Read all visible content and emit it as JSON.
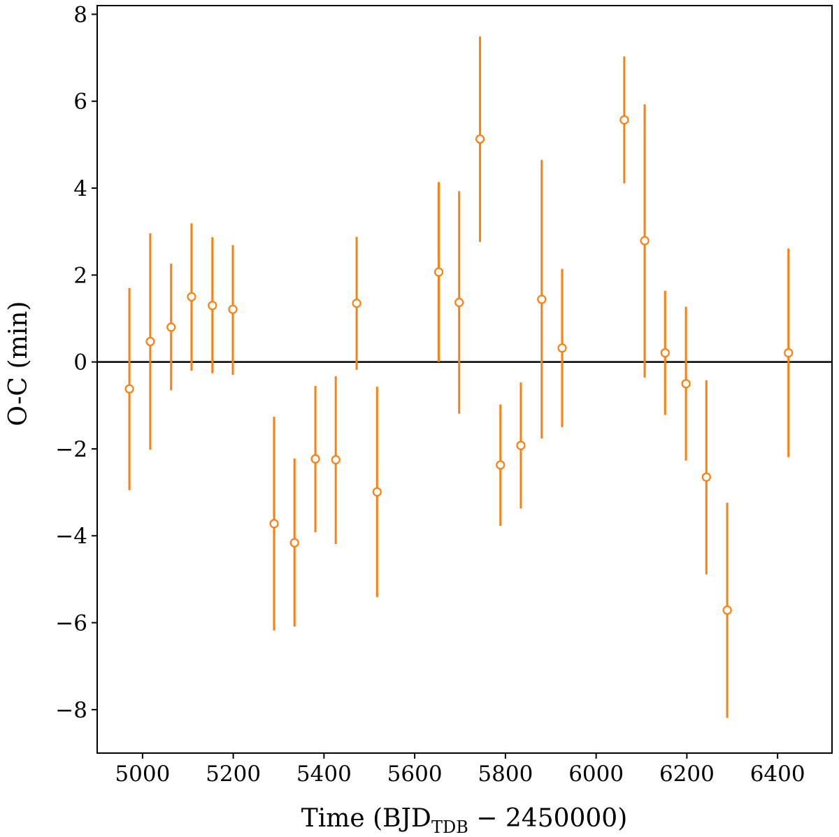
{
  "chart_data": {
    "type": "scatter",
    "xlabel": "Time (BJD",
    "xlabel_subscript": "TDB",
    "xlabel_suffix": " − 2450000)",
    "ylabel": "O-C (min)",
    "xlim": [
      4900,
      6520
    ],
    "ylim": [
      -9,
      8.2
    ],
    "xticks": [
      5000,
      5200,
      5400,
      5600,
      5800,
      6000,
      6200,
      6400
    ],
    "xtick_labels": [
      "5000",
      "5200",
      "5400",
      "5600",
      "5800",
      "6000",
      "6200",
      "6400"
    ],
    "yticks": [
      -8,
      -6,
      -4,
      -2,
      0,
      2,
      4,
      6,
      8
    ],
    "ytick_labels": [
      "−8",
      "−6",
      "−4",
      "−2",
      "0",
      "2",
      "4",
      "6",
      "8"
    ],
    "reference_line_y": 0,
    "marker": "open-circle",
    "color": "#ff7f0e",
    "points": [
      {
        "x": 4971,
        "y": -0.62,
        "ylow": -2.95,
        "yhigh": 1.7
      },
      {
        "x": 5017,
        "y": 0.47,
        "ylow": -2.02,
        "yhigh": 2.96
      },
      {
        "x": 5063,
        "y": 0.8,
        "ylow": -0.65,
        "yhigh": 2.26
      },
      {
        "x": 5108,
        "y": 1.5,
        "ylow": -0.2,
        "yhigh": 3.19
      },
      {
        "x": 5154,
        "y": 1.3,
        "ylow": -0.26,
        "yhigh": 2.87
      },
      {
        "x": 5199,
        "y": 1.21,
        "ylow": -0.3,
        "yhigh": 2.69
      },
      {
        "x": 5290,
        "y": -3.72,
        "ylow": -6.18,
        "yhigh": -1.26
      },
      {
        "x": 5335,
        "y": -4.16,
        "ylow": -6.09,
        "yhigh": -2.22
      },
      {
        "x": 5381,
        "y": -2.23,
        "ylow": -3.92,
        "yhigh": -0.55
      },
      {
        "x": 5426,
        "y": -2.25,
        "ylow": -4.19,
        "yhigh": -0.33
      },
      {
        "x": 5472,
        "y": 1.35,
        "ylow": -0.18,
        "yhigh": 2.88
      },
      {
        "x": 5517,
        "y": -2.99,
        "ylow": -5.41,
        "yhigh": -0.57
      },
      {
        "x": 5653,
        "y": 2.07,
        "ylow": 0.0,
        "yhigh": 4.14
      },
      {
        "x": 5698,
        "y": 1.37,
        "ylow": -1.19,
        "yhigh": 3.93
      },
      {
        "x": 5744,
        "y": 5.13,
        "ylow": 2.76,
        "yhigh": 7.49
      },
      {
        "x": 5789,
        "y": -2.37,
        "ylow": -3.77,
        "yhigh": -0.98
      },
      {
        "x": 5834,
        "y": -1.92,
        "ylow": -3.37,
        "yhigh": -0.47
      },
      {
        "x": 5880,
        "y": 1.44,
        "ylow": -1.76,
        "yhigh": 4.65
      },
      {
        "x": 5925,
        "y": 0.32,
        "ylow": -1.5,
        "yhigh": 2.14
      },
      {
        "x": 6062,
        "y": 5.57,
        "ylow": 4.11,
        "yhigh": 7.03
      },
      {
        "x": 6107,
        "y": 2.79,
        "ylow": -0.36,
        "yhigh": 5.93
      },
      {
        "x": 6152,
        "y": 0.21,
        "ylow": -1.22,
        "yhigh": 1.64
      },
      {
        "x": 6198,
        "y": -0.5,
        "ylow": -2.27,
        "yhigh": 1.27
      },
      {
        "x": 6243,
        "y": -2.65,
        "ylow": -4.89,
        "yhigh": -0.42
      },
      {
        "x": 6289,
        "y": -5.71,
        "ylow": -8.19,
        "yhigh": -3.24
      },
      {
        "x": 6424,
        "y": 0.21,
        "ylow": -2.19,
        "yhigh": 2.61
      }
    ]
  }
}
